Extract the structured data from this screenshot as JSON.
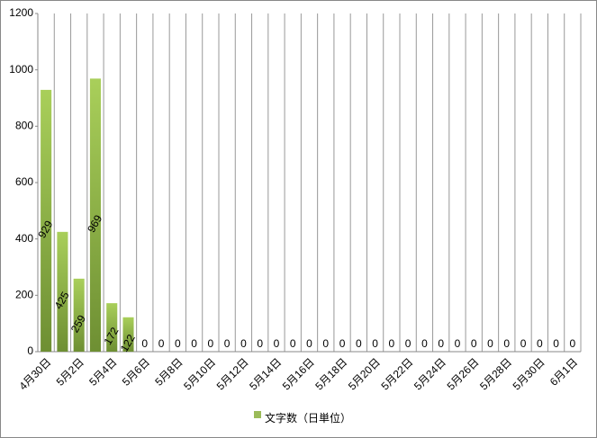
{
  "chart_data": {
    "type": "bar",
    "categories": [
      "4月30日",
      null,
      "5月2日",
      null,
      "5月4日",
      null,
      "5月6日",
      null,
      "5月8日",
      null,
      "5月10日",
      null,
      "5月12日",
      null,
      "5月14日",
      null,
      "5月16日",
      null,
      "5月18日",
      null,
      "5月20日",
      null,
      "5月22日",
      null,
      "5月24日",
      null,
      "5月26日",
      null,
      "5月28日",
      null,
      "5月30日",
      null,
      "6月1日"
    ],
    "series": [
      {
        "name": "文字数（日単位）",
        "color": "#9bbb59",
        "values": [
          929,
          425,
          259,
          969,
          172,
          122,
          0,
          0,
          0,
          0,
          0,
          0,
          0,
          0,
          0,
          0,
          0,
          0,
          0,
          0,
          0,
          0,
          0,
          0,
          0,
          0,
          0,
          0,
          0,
          0,
          0,
          0,
          0
        ]
      }
    ],
    "ylim": [
      0,
      1200
    ],
    "yticks": [
      0,
      200,
      400,
      600,
      800,
      1000,
      1200
    ],
    "xgrid": true,
    "legend": "bottom"
  }
}
